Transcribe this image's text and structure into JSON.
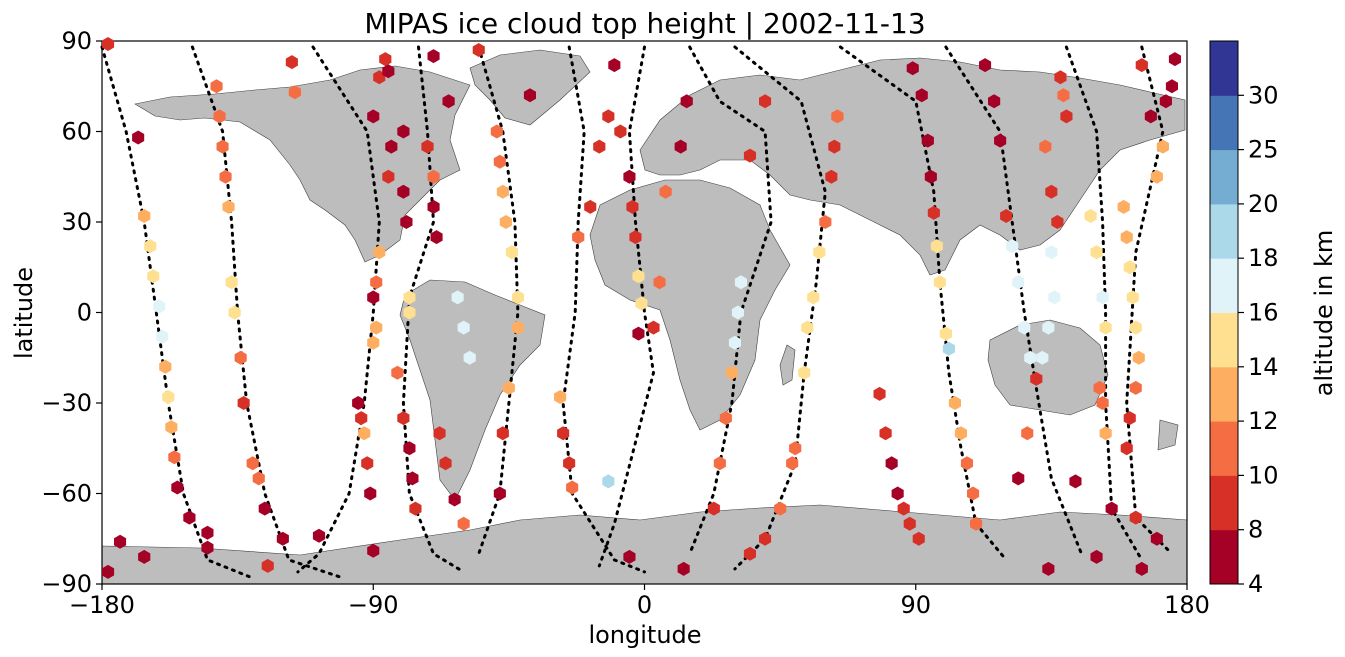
{
  "chart_data": {
    "type": "scatter",
    "title": "MIPAS ice cloud top height | 2002-11-13",
    "xlabel": "longitude",
    "ylabel": "latitude",
    "xlim": [
      -180,
      180
    ],
    "ylim": [
      -90,
      90
    ],
    "xticks": [
      -180,
      -90,
      0,
      90,
      180
    ],
    "yticks": [
      -90,
      -60,
      -30,
      0,
      30,
      60,
      90
    ],
    "xtick_labels": [
      "−180",
      "−90",
      "0",
      "90",
      "180"
    ],
    "ytick_labels": [
      "−90",
      "−60",
      "−30",
      "0",
      "30",
      "60",
      "90"
    ],
    "grid": false,
    "colorbar": {
      "label": "altitude in km",
      "boundaries": [
        4,
        8,
        10,
        12,
        14,
        16,
        18,
        20,
        25,
        30
      ],
      "tick_labels": [
        "4",
        "8",
        "10",
        "12",
        "14",
        "16",
        "18",
        "20",
        "25",
        "30"
      ],
      "colors": [
        "#a50026",
        "#d73027",
        "#f46d43",
        "#fdae61",
        "#fee090",
        "#e0f3f8",
        "#abd9e9",
        "#74add1",
        "#4575b4",
        "#313695"
      ]
    },
    "land_color": "#bdbdbd",
    "track_color": "#000000",
    "points": [
      {
        "lon": -178,
        "lat": 89,
        "alt": 9
      },
      {
        "lon": -168,
        "lat": 58,
        "alt": 6
      },
      {
        "lon": -166,
        "lat": 32,
        "alt": 12
      },
      {
        "lon": -164,
        "lat": 22,
        "alt": 15
      },
      {
        "lon": -163,
        "lat": 12,
        "alt": 15
      },
      {
        "lon": -161,
        "lat": 2,
        "alt": 17
      },
      {
        "lon": -160,
        "lat": -8,
        "alt": 17
      },
      {
        "lon": -159,
        "lat": -18,
        "alt": 12
      },
      {
        "lon": -158,
        "lat": -28,
        "alt": 14
      },
      {
        "lon": -157,
        "lat": -38,
        "alt": 13
      },
      {
        "lon": -156,
        "lat": -48,
        "alt": 10
      },
      {
        "lon": -155,
        "lat": -58,
        "alt": 7
      },
      {
        "lon": -151,
        "lat": -68,
        "alt": 7
      },
      {
        "lon": -166,
        "lat": -81,
        "alt": 7
      },
      {
        "lon": -174,
        "lat": -76,
        "alt": 6
      },
      {
        "lon": -178,
        "lat": -86,
        "alt": 6
      },
      {
        "lon": -145,
        "lat": -78,
        "alt": 7
      },
      {
        "lon": -145,
        "lat": -73,
        "alt": 7
      },
      {
        "lon": -142,
        "lat": 75,
        "alt": 10
      },
      {
        "lon": -141,
        "lat": 65,
        "alt": 11
      },
      {
        "lon": -140,
        "lat": 55,
        "alt": 11
      },
      {
        "lon": -139,
        "lat": 45,
        "alt": 10
      },
      {
        "lon": -138,
        "lat": 35,
        "alt": 12
      },
      {
        "lon": -137,
        "lat": 10,
        "alt": 15
      },
      {
        "lon": -136,
        "lat": 0,
        "alt": 15
      },
      {
        "lon": -134,
        "lat": -15,
        "alt": 11
      },
      {
        "lon": -133,
        "lat": -30,
        "alt": 8
      },
      {
        "lon": -130,
        "lat": -50,
        "alt": 10
      },
      {
        "lon": -128,
        "lat": -55,
        "alt": 11
      },
      {
        "lon": -126,
        "lat": -65,
        "alt": 7
      },
      {
        "lon": -125,
        "lat": -84,
        "alt": 9
      },
      {
        "lon": -120,
        "lat": -75,
        "alt": 7
      },
      {
        "lon": -117,
        "lat": 83,
        "alt": 9
      },
      {
        "lon": -116,
        "lat": 73,
        "alt": 10
      },
      {
        "lon": -108,
        "lat": -74,
        "alt": 7
      },
      {
        "lon": -95,
        "lat": -30,
        "alt": 7
      },
      {
        "lon": -94,
        "lat": -35,
        "alt": 8
      },
      {
        "lon": -93,
        "lat": -40,
        "alt": 12
      },
      {
        "lon": -92,
        "lat": -50,
        "alt": 9
      },
      {
        "lon": -91,
        "lat": -60,
        "alt": 7
      },
      {
        "lon": -90,
        "lat": 5,
        "alt": 7
      },
      {
        "lon": -89,
        "lat": 10,
        "alt": 11
      },
      {
        "lon": -88,
        "lat": 20,
        "alt": 13
      },
      {
        "lon": -89,
        "lat": -5,
        "alt": 12
      },
      {
        "lon": -90,
        "lat": -10,
        "alt": 13
      },
      {
        "lon": -85,
        "lat": 45,
        "alt": 8
      },
      {
        "lon": -84,
        "lat": 55,
        "alt": 7
      },
      {
        "lon": -90,
        "lat": 65,
        "alt": 7
      },
      {
        "lon": -88,
        "lat": 78,
        "alt": 9
      },
      {
        "lon": -86,
        "lat": 84,
        "alt": 8
      },
      {
        "lon": -90,
        "lat": -79,
        "alt": 7
      },
      {
        "lon": -85,
        "lat": 80,
        "alt": 7
      },
      {
        "lon": -80,
        "lat": 60,
        "alt": 7
      },
      {
        "lon": -80,
        "lat": 40,
        "alt": 7
      },
      {
        "lon": -79,
        "lat": 30,
        "alt": 7
      },
      {
        "lon": -80,
        "lat": -35,
        "alt": 9
      },
      {
        "lon": -78,
        "lat": -45,
        "alt": 7
      },
      {
        "lon": -77,
        "lat": -55,
        "alt": 7
      },
      {
        "lon": -76,
        "lat": -65,
        "alt": 9
      },
      {
        "lon": -82,
        "lat": -20,
        "alt": 11
      },
      {
        "lon": -78,
        "lat": 5,
        "alt": 14
      },
      {
        "lon": -78,
        "lat": 0,
        "alt": 15
      },
      {
        "lon": -72,
        "lat": 55,
        "alt": 9
      },
      {
        "lon": -70,
        "lat": 45,
        "alt": 11
      },
      {
        "lon": -70,
        "lat": 35,
        "alt": 7
      },
      {
        "lon": -69,
        "lat": 25,
        "alt": 7
      },
      {
        "lon": -70,
        "lat": 85,
        "alt": 7
      },
      {
        "lon": -65,
        "lat": 70,
        "alt": 7
      },
      {
        "lon": -68,
        "lat": -40,
        "alt": 9
      },
      {
        "lon": -66,
        "lat": -50,
        "alt": 9
      },
      {
        "lon": -63,
        "lat": -62,
        "alt": 6
      },
      {
        "lon": -60,
        "lat": -70,
        "alt": 11
      },
      {
        "lon": -60,
        "lat": -5,
        "alt": 16
      },
      {
        "lon": -62,
        "lat": 5,
        "alt": 16
      },
      {
        "lon": -58,
        "lat": -15,
        "alt": 16
      },
      {
        "lon": -55,
        "lat": 87,
        "alt": 8
      },
      {
        "lon": -49,
        "lat": 60,
        "alt": 10
      },
      {
        "lon": -48,
        "lat": 50,
        "alt": 11
      },
      {
        "lon": -47,
        "lat": 40,
        "alt": 13
      },
      {
        "lon": -46,
        "lat": 30,
        "alt": 13
      },
      {
        "lon": -44,
        "lat": 20,
        "alt": 14
      },
      {
        "lon": -42,
        "lat": 5,
        "alt": 14
      },
      {
        "lon": -42,
        "lat": -5,
        "alt": 13
      },
      {
        "lon": -45,
        "lat": -25,
        "alt": 12
      },
      {
        "lon": -47,
        "lat": -40,
        "alt": 8
      },
      {
        "lon": -48,
        "lat": -60,
        "alt": 7
      },
      {
        "lon": -38,
        "lat": 72,
        "alt": 7
      },
      {
        "lon": -28,
        "lat": -28,
        "alt": 13
      },
      {
        "lon": -27,
        "lat": -40,
        "alt": 9
      },
      {
        "lon": -25,
        "lat": -50,
        "alt": 9
      },
      {
        "lon": -24,
        "lat": -58,
        "alt": 10
      },
      {
        "lon": -22,
        "lat": 25,
        "alt": 10
      },
      {
        "lon": -18,
        "lat": 35,
        "alt": 9
      },
      {
        "lon": -15,
        "lat": 55,
        "alt": 9
      },
      {
        "lon": -12,
        "lat": 65,
        "alt": 9
      },
      {
        "lon": -10,
        "lat": 82,
        "alt": 7
      },
      {
        "lon": -12,
        "lat": -56,
        "alt": 19
      },
      {
        "lon": -8,
        "lat": 60,
        "alt": 8
      },
      {
        "lon": -5,
        "lat": 45,
        "alt": 7
      },
      {
        "lon": -4,
        "lat": 35,
        "alt": 9
      },
      {
        "lon": -3,
        "lat": 25,
        "alt": 8
      },
      {
        "lon": -2,
        "lat": 12,
        "alt": 15
      },
      {
        "lon": -1,
        "lat": 3,
        "alt": 14
      },
      {
        "lon": -2,
        "lat": -7,
        "alt": 7
      },
      {
        "lon": 3,
        "lat": -5,
        "alt": 8
      },
      {
        "lon": 5,
        "lat": 10,
        "alt": 11
      },
      {
        "lon": 7,
        "lat": 40,
        "alt": 11
      },
      {
        "lon": 12,
        "lat": 55,
        "alt": 7
      },
      {
        "lon": 14,
        "lat": 70,
        "alt": 7
      },
      {
        "lon": -5,
        "lat": -81,
        "alt": 7
      },
      {
        "lon": 13,
        "lat": -85,
        "alt": 7
      },
      {
        "lon": 23,
        "lat": -65,
        "alt": 9
      },
      {
        "lon": 25,
        "lat": -50,
        "alt": 10
      },
      {
        "lon": 27,
        "lat": -35,
        "alt": 11
      },
      {
        "lon": 29,
        "lat": -20,
        "alt": 12
      },
      {
        "lon": 30,
        "lat": -10,
        "alt": 16
      },
      {
        "lon": 31,
        "lat": 0,
        "alt": 16
      },
      {
        "lon": 32,
        "lat": 10,
        "alt": 16
      },
      {
        "lon": 35,
        "lat": 52,
        "alt": 8
      },
      {
        "lon": 40,
        "lat": 70,
        "alt": 9
      },
      {
        "lon": 40,
        "lat": -75,
        "alt": 9
      },
      {
        "lon": 35,
        "lat": -80,
        "alt": 9
      },
      {
        "lon": 50,
        "lat": -45,
        "alt": 11
      },
      {
        "lon": 49,
        "lat": -50,
        "alt": 11
      },
      {
        "lon": 45,
        "lat": -65,
        "alt": 11
      },
      {
        "lon": 53,
        "lat": -20,
        "alt": 15
      },
      {
        "lon": 54,
        "lat": -5,
        "alt": 15
      },
      {
        "lon": 56,
        "lat": 5,
        "alt": 15
      },
      {
        "lon": 58,
        "lat": 20,
        "alt": 15
      },
      {
        "lon": 60,
        "lat": 30,
        "alt": 10
      },
      {
        "lon": 62,
        "lat": 45,
        "alt": 9
      },
      {
        "lon": 63,
        "lat": 55,
        "alt": 9
      },
      {
        "lon": 64,
        "lat": 65,
        "alt": 11
      },
      {
        "lon": 78,
        "lat": -27,
        "alt": 9
      },
      {
        "lon": 80,
        "lat": -40,
        "alt": 9
      },
      {
        "lon": 82,
        "lat": -50,
        "alt": 7
      },
      {
        "lon": 84,
        "lat": -60,
        "alt": 7
      },
      {
        "lon": 86,
        "lat": -65,
        "alt": 9
      },
      {
        "lon": 88,
        "lat": -70,
        "alt": 9
      },
      {
        "lon": 91,
        "lat": -75,
        "alt": 9
      },
      {
        "lon": 89,
        "lat": 81,
        "alt": 7
      },
      {
        "lon": 92,
        "lat": 72,
        "alt": 7
      },
      {
        "lon": 94,
        "lat": 57,
        "alt": 7
      },
      {
        "lon": 95,
        "lat": 45,
        "alt": 7
      },
      {
        "lon": 96,
        "lat": 33,
        "alt": 9
      },
      {
        "lon": 97,
        "lat": 22,
        "alt": 14
      },
      {
        "lon": 98,
        "lat": 10,
        "alt": 15
      },
      {
        "lon": 100,
        "lat": -7,
        "alt": 15
      },
      {
        "lon": 101,
        "lat": -12,
        "alt": 19
      },
      {
        "lon": 103,
        "lat": -30,
        "alt": 13
      },
      {
        "lon": 105,
        "lat": -40,
        "alt": 12
      },
      {
        "lon": 107,
        "lat": -50,
        "alt": 10
      },
      {
        "lon": 109,
        "lat": -60,
        "alt": 10
      },
      {
        "lon": 110,
        "lat": -70,
        "alt": 10
      },
      {
        "lon": 113,
        "lat": 82,
        "alt": 7
      },
      {
        "lon": 116,
        "lat": 70,
        "alt": 7
      },
      {
        "lon": 118,
        "lat": 57,
        "alt": 7
      },
      {
        "lon": 120,
        "lat": 32,
        "alt": 9
      },
      {
        "lon": 122,
        "lat": 22,
        "alt": 16
      },
      {
        "lon": 124,
        "lat": 10,
        "alt": 16
      },
      {
        "lon": 126,
        "lat": -5,
        "alt": 16
      },
      {
        "lon": 128,
        "lat": -15,
        "alt": 16
      },
      {
        "lon": 130,
        "lat": -22,
        "alt": 9
      },
      {
        "lon": 127,
        "lat": -40,
        "alt": 10
      },
      {
        "lon": 124,
        "lat": -55,
        "alt": 7
      },
      {
        "lon": 135,
        "lat": 20,
        "alt": 17
      },
      {
        "lon": 136,
        "lat": 5,
        "alt": 17
      },
      {
        "lon": 134,
        "lat": -5,
        "alt": 17
      },
      {
        "lon": 132,
        "lat": -15,
        "alt": 16
      },
      {
        "lon": 133,
        "lat": 55,
        "alt": 10
      },
      {
        "lon": 135,
        "lat": 40,
        "alt": 9
      },
      {
        "lon": 137,
        "lat": 30,
        "alt": 9
      },
      {
        "lon": 138,
        "lat": 78,
        "alt": 8
      },
      {
        "lon": 139,
        "lat": 72,
        "alt": 10
      },
      {
        "lon": 140,
        "lat": 65,
        "alt": 9
      },
      {
        "lon": 143,
        "lat": -56,
        "alt": 7
      },
      {
        "lon": 134,
        "lat": -85,
        "alt": 7
      },
      {
        "lon": 148,
        "lat": 32,
        "alt": 15
      },
      {
        "lon": 150,
        "lat": 20,
        "alt": 15
      },
      {
        "lon": 152,
        "lat": 5,
        "alt": 17
      },
      {
        "lon": 153,
        "lat": -5,
        "alt": 15
      },
      {
        "lon": 151,
        "lat": -25,
        "alt": 11
      },
      {
        "lon": 152,
        "lat": -30,
        "alt": 11
      },
      {
        "lon": 153,
        "lat": -40,
        "alt": 12
      },
      {
        "lon": 155,
        "lat": -65,
        "alt": 7
      },
      {
        "lon": 150,
        "lat": -81,
        "alt": 7
      },
      {
        "lon": 159,
        "lat": 35,
        "alt": 12
      },
      {
        "lon": 160,
        "lat": 25,
        "alt": 13
      },
      {
        "lon": 161,
        "lat": 15,
        "alt": 15
      },
      {
        "lon": 162,
        "lat": 5,
        "alt": 14
      },
      {
        "lon": 163,
        "lat": -5,
        "alt": 14
      },
      {
        "lon": 164,
        "lat": -15,
        "alt": 13
      },
      {
        "lon": 163,
        "lat": -25,
        "alt": 11
      },
      {
        "lon": 161,
        "lat": -35,
        "alt": 8
      },
      {
        "lon": 160,
        "lat": -45,
        "alt": 8
      },
      {
        "lon": 163,
        "lat": -68,
        "alt": 9
      },
      {
        "lon": 165,
        "lat": 82,
        "alt": 9
      },
      {
        "lon": 168,
        "lat": 65,
        "alt": 6
      },
      {
        "lon": 170,
        "lat": 45,
        "alt": 12
      },
      {
        "lon": 172,
        "lat": 55,
        "alt": 13
      },
      {
        "lon": 176,
        "lat": 84,
        "alt": 7
      },
      {
        "lon": 175,
        "lat": 75,
        "alt": 7
      },
      {
        "lon": 173,
        "lat": 70,
        "alt": 7
      },
      {
        "lon": 165,
        "lat": -85,
        "alt": 7
      },
      {
        "lon": 170,
        "lat": -75,
        "alt": 7
      }
    ]
  }
}
